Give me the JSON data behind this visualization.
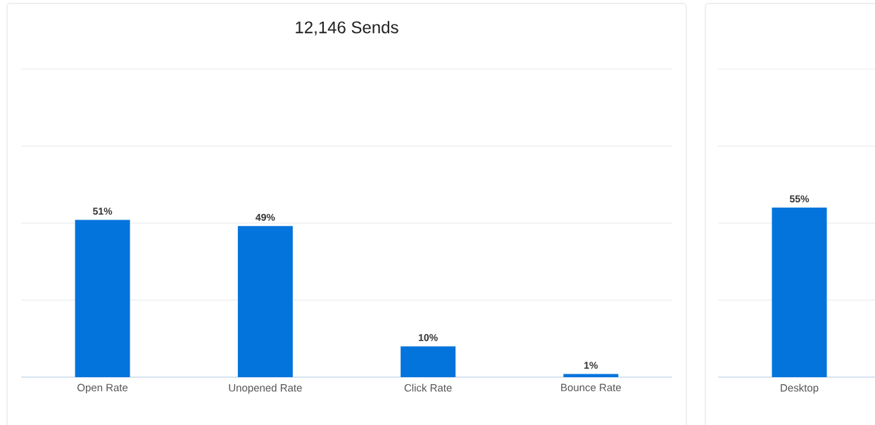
{
  "chart_data": [
    {
      "type": "bar",
      "title": "12,146 Sends",
      "categories": [
        "Open Rate",
        "Unopened Rate",
        "Click Rate",
        "Bounce Rate"
      ],
      "values": [
        51,
        49,
        10,
        1
      ],
      "value_labels": [
        "51%",
        "49%",
        "10%",
        "1%"
      ],
      "color": "#0274dc",
      "ylim": [
        0,
        100
      ],
      "yticks": [
        {
          "value": 0,
          "label": null
        },
        {
          "value": 25,
          "label": null
        },
        {
          "value": 50,
          "label": null
        },
        {
          "value": 75,
          "label": null
        },
        {
          "value": 100,
          "label": null
        }
      ],
      "grid": "y",
      "tick_labels": "x"
    },
    {
      "type": "bar",
      "categories": [
        "Desktop"
      ],
      "values": [
        55
      ],
      "value_labels": [
        "55%"
      ],
      "color": "#0274dc",
      "ylim": [
        0,
        100
      ],
      "yticks": [
        {
          "value": 0,
          "label": null
        },
        {
          "value": 25,
          "label": null
        },
        {
          "value": 50,
          "label": null
        },
        {
          "value": 75,
          "label": null
        },
        {
          "value": 100,
          "label": null
        }
      ],
      "grid": "y",
      "tick_labels": "x"
    }
  ]
}
